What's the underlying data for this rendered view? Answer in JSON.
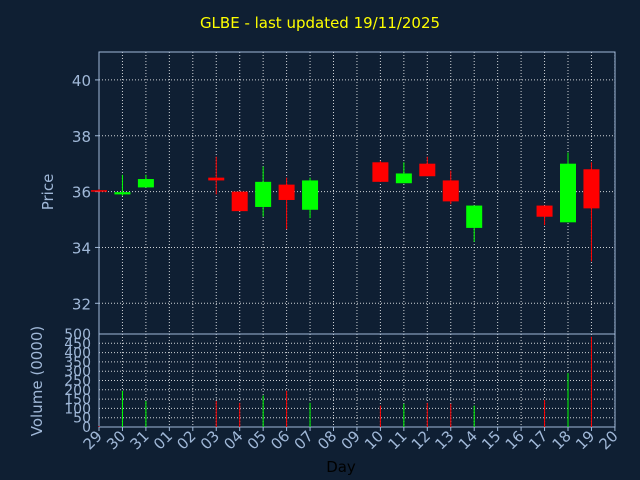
{
  "colors": {
    "background": "#0f1f33",
    "title": "#ffff00",
    "axis_text": "#a0b8d8",
    "frame": "#a0b8d8",
    "grid": "#ffffff",
    "up": "#00ff00",
    "down": "#ff0000"
  },
  "chart_data": {
    "type": "candlestick",
    "title": "GLBE - last updated 19/11/2025",
    "xlabel": "Day",
    "ylabel": "Price",
    "volume_ylabel": "Volume (0000)",
    "ylim": [
      30.9,
      41
    ],
    "volume_ylim": [
      0,
      500
    ],
    "price_ticks": [
      "40",
      "38",
      "36",
      "34",
      "32"
    ],
    "volume_ticks": [
      "500",
      "450",
      "400",
      "350",
      "300",
      "250",
      "200",
      "150",
      "100",
      "50",
      "0"
    ],
    "x_ticks": [
      "29",
      "30",
      "31",
      "01",
      "02",
      "03",
      "04",
      "05",
      "06",
      "07",
      "08",
      "09",
      "10",
      "11",
      "12",
      "13",
      "14",
      "15",
      "16",
      "17",
      "18",
      "19",
      "20"
    ],
    "grid": true,
    "candles": [
      {
        "day": "29",
        "open": 36.05,
        "high": 36.08,
        "low": 36.0,
        "close": 36.02,
        "volume": 5
      },
      {
        "day": "30",
        "open": 35.9,
        "high": 36.6,
        "low": 35.85,
        "close": 35.98,
        "volume": 195
      },
      {
        "day": "31",
        "open": 36.15,
        "high": 36.6,
        "low": 36.15,
        "close": 36.45,
        "volume": 140
      },
      {
        "day": "03",
        "open": 36.5,
        "high": 37.25,
        "low": 35.9,
        "close": 36.4,
        "volume": 140
      },
      {
        "day": "04",
        "open": 36.0,
        "high": 36.0,
        "low": 35.3,
        "close": 35.3,
        "volume": 130
      },
      {
        "day": "05",
        "open": 35.45,
        "high": 36.9,
        "low": 35.1,
        "close": 36.35,
        "volume": 170
      },
      {
        "day": "06",
        "open": 36.25,
        "high": 36.5,
        "low": 34.65,
        "close": 35.7,
        "volume": 195
      },
      {
        "day": "07",
        "open": 35.35,
        "high": 36.5,
        "low": 35.05,
        "close": 36.4,
        "volume": 130
      },
      {
        "day": "10",
        "open": 37.05,
        "high": 37.1,
        "low": 36.35,
        "close": 36.35,
        "volume": 115
      },
      {
        "day": "11",
        "open": 36.3,
        "high": 37.05,
        "low": 36.3,
        "close": 36.65,
        "volume": 125
      },
      {
        "day": "12",
        "open": 37.0,
        "high": 37.25,
        "low": 36.55,
        "close": 36.55,
        "volume": 130
      },
      {
        "day": "13",
        "open": 36.4,
        "high": 36.75,
        "low": 35.55,
        "close": 35.65,
        "volume": 125
      },
      {
        "day": "14",
        "open": 34.7,
        "high": 35.5,
        "low": 34.2,
        "close": 35.5,
        "volume": 115
      },
      {
        "day": "17",
        "open": 35.5,
        "high": 35.5,
        "low": 34.8,
        "close": 35.1,
        "volume": 145
      },
      {
        "day": "18",
        "open": 34.9,
        "high": 37.4,
        "low": 34.9,
        "close": 37.0,
        "volume": 290
      },
      {
        "day": "19",
        "open": 36.8,
        "high": 37.05,
        "low": 33.5,
        "close": 35.4,
        "volume": 485
      }
    ]
  }
}
